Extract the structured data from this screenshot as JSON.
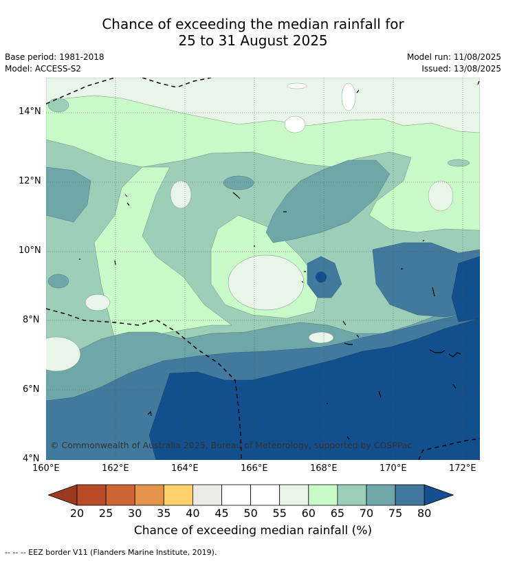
{
  "header": {
    "title_line1": "Chance of exceeding the median rainfall for",
    "title_line2": "25 to 31 August 2025",
    "base_period": "Base period: 1981-2018",
    "model": "Model: ACCESS-S2",
    "model_run": "Model run: 11/08/2025",
    "issued": "Issued: 13/08/2025"
  },
  "map": {
    "latitude_labels": [
      "14°N",
      "12°N",
      "10°N",
      "8°N",
      "6°N",
      "4°N"
    ],
    "longitude_labels": [
      "160°E",
      "162°E",
      "164°E",
      "166°E",
      "168°E",
      "170°E",
      "172°E"
    ],
    "copyright": "© Commonwealth of Australia 2025, Bureau of Meteorology, supported by COSPPac",
    "grid": "dotted",
    "border_style": "dashed"
  },
  "colorbar": {
    "title": "Chance of exceeding median rainfall (%)",
    "ticks": [
      "20",
      "25",
      "30",
      "35",
      "40",
      "45",
      "50",
      "55",
      "60",
      "65",
      "70",
      "75",
      "80"
    ],
    "colors": [
      "#9b3a21",
      "#b84c27",
      "#cd6535",
      "#e2954a",
      "#fdd06a",
      "#eaeae6",
      "#ffffff",
      "#ffffff",
      "#e9f5e9",
      "#c8fbc8",
      "#9dcfb8",
      "#6fa6a8",
      "#427a9d",
      "#124f8c"
    ]
  },
  "footnote": "--  --  -- EEZ border V11 (Flanders Marine Institute, 2019)."
}
